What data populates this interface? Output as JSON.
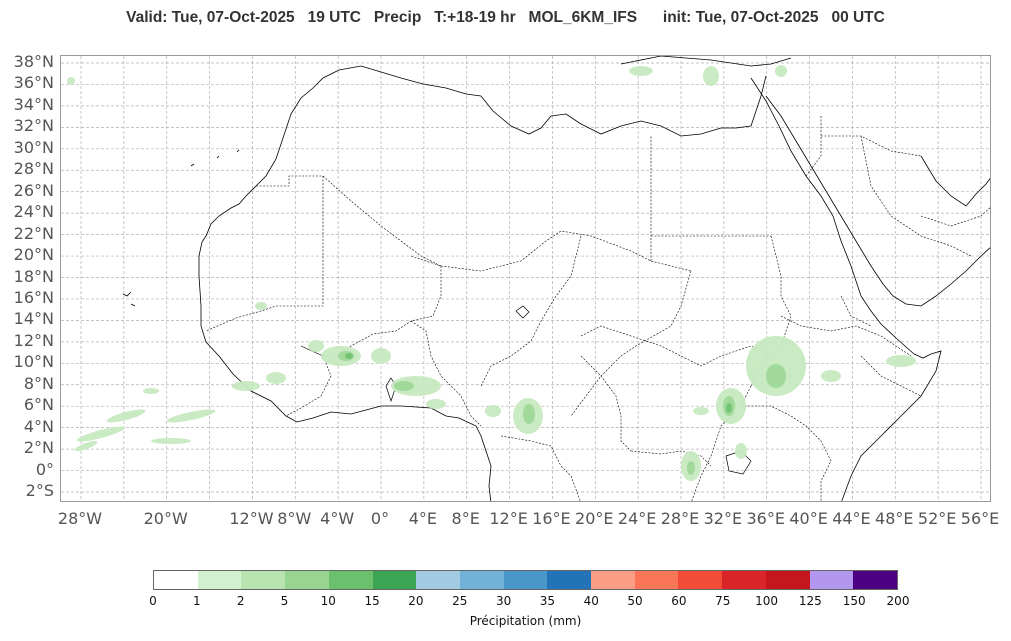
{
  "header": {
    "title": "Valid: Tue, 07-Oct-2025   19 UTC   Precip   T:+18-19 hr   MOL_6KM_IFS      init: Tue, 07-Oct-2025   00 UTC"
  },
  "map": {
    "lat_labels": [
      "38°N",
      "36°N",
      "34°N",
      "32°N",
      "30°N",
      "28°N",
      "26°N",
      "24°N",
      "22°N",
      "20°N",
      "18°N",
      "16°N",
      "14°N",
      "12°N",
      "10°N",
      "8°N",
      "6°N",
      "4°N",
      "2°N",
      "0°",
      "2°S"
    ],
    "lon_labels": [
      "28°W",
      "20°W",
      "12°W",
      "8°W",
      "4°W",
      "0°",
      "4°E",
      "8°E",
      "12°E",
      "16°E",
      "20°E",
      "24°E",
      "28°E",
      "32°E",
      "36°E",
      "40°E",
      "44°E",
      "48°E",
      "52°E",
      "56°E"
    ],
    "colors": {
      "coastline": "#000000",
      "grid": "#b0b0b0",
      "precip_light": "#c7e9c0",
      "precip_mid": "#a1d99b",
      "precip_heavy": "#74c476"
    }
  },
  "colorbar": {
    "ticks": [
      "0",
      "1",
      "2",
      "5",
      "10",
      "15",
      "20",
      "25",
      "30",
      "35",
      "40",
      "50",
      "60",
      "75",
      "100",
      "125",
      "150",
      "200"
    ],
    "colors": [
      "#ffffff",
      "#d0f0cf",
      "#b9e4b2",
      "#98d591",
      "#6bc06e",
      "#3ba553",
      "#a2cbe2",
      "#72b1d8",
      "#4a98c9",
      "#2374b7",
      "#fc9e85",
      "#fb7656",
      "#f24b37",
      "#d92527",
      "#c4161c",
      "#b296f0",
      "#4c0081"
    ],
    "label": "Précipitation (mm)"
  }
}
